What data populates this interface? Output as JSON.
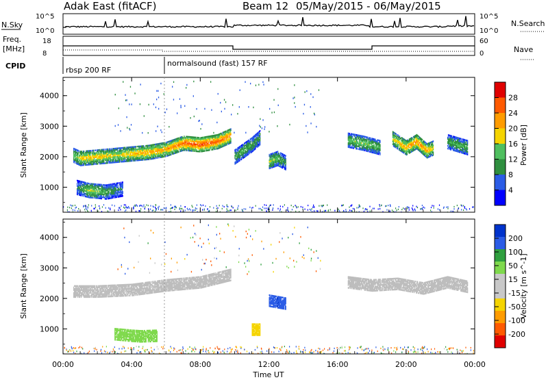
{
  "header": {
    "station": "Adak East (fitACF)",
    "beam": "Beam 12",
    "daterange": "05/May/2015 - 06/May/2015"
  },
  "nsky_panel": {
    "left_label": "N.Sky",
    "right_label": "N.Search",
    "left_ticks": [
      "10^5",
      "10^0"
    ],
    "right_ticks": [
      "10^5",
      "10^0"
    ]
  },
  "freq_panel": {
    "left_label_1": "Freq.",
    "left_label_2": "[MHz]",
    "right_label": "Nave",
    "left_ticks": [
      "18",
      "8"
    ],
    "right_ticks": [
      "60",
      "0"
    ]
  },
  "cpid_panel": {
    "label": "CPID",
    "modes": [
      "rbsp 200 RF",
      "normalsound (fast) 157 RF"
    ]
  },
  "colors": {
    "power_scale": [
      "#0000ff",
      "#2b5ce6",
      "#2f8f3f",
      "#4fbf5f",
      "#f5d400",
      "#ff9c00",
      "#ff5a00",
      "#e00000"
    ],
    "velocity_scale": [
      "#e00000",
      "#ff5a00",
      "#ff9c00",
      "#f5d400",
      "#c8c8c8",
      "#c8c8c8",
      "#7fd94d",
      "#2f9f3f",
      "#2b5ce6",
      "#0033cc"
    ],
    "ground_scatter": "#bdbdbd"
  },
  "chart_data": [
    {
      "type": "heatmap",
      "panel": "power",
      "ylabel": "Slant Range [km]",
      "ylim": [
        180,
        4600
      ],
      "yticks": [
        "1000",
        "2000",
        "3000",
        "4000"
      ],
      "colorbar": {
        "label": "Power [dB]",
        "ticks": [
          "4",
          "8",
          "12",
          "16",
          "20",
          "24",
          "28"
        ],
        "range": [
          0,
          32
        ]
      },
      "echo_bands": [
        {
          "x": [
            0.6,
            1.0,
            2.0,
            3.0,
            4.0,
            5.0,
            6.0,
            7.0,
            8.0,
            9.0,
            9.8
          ],
          "center_km": [
            2050,
            1950,
            2000,
            2050,
            2100,
            2150,
            2250,
            2450,
            2400,
            2500,
            2700
          ],
          "power_db": [
            14,
            20,
            20,
            18,
            20,
            22,
            22,
            26,
            28,
            26,
            24
          ]
        },
        {
          "x": [
            0.8,
            1.5,
            2.5,
            3.5
          ],
          "center_km": [
            1000,
            900,
            850,
            950
          ],
          "power_db": [
            8,
            18,
            12,
            8
          ]
        },
        {
          "x": [
            10.0,
            10.5,
            11.0,
            11.5
          ],
          "center_km": [
            2000,
            2200,
            2400,
            2650
          ],
          "power_db": [
            12,
            14,
            12,
            10
          ]
        },
        {
          "x": [
            12.0,
            12.5,
            13.0
          ],
          "center_km": [
            1850,
            1950,
            1800
          ],
          "power_db": [
            16,
            14,
            10
          ]
        },
        {
          "x": [
            16.6,
            17.5,
            18.5
          ],
          "center_km": [
            2550,
            2450,
            2300
          ],
          "power_db": [
            14,
            16,
            12
          ]
        },
        {
          "x": [
            19.2,
            20.0,
            20.6,
            21.2,
            21.6
          ],
          "center_km": [
            2600,
            2300,
            2500,
            2200,
            2300
          ],
          "power_db": [
            18,
            22,
            24,
            22,
            18
          ]
        },
        {
          "x": [
            22.4,
            23.0,
            23.6
          ],
          "center_km": [
            2500,
            2400,
            2300
          ],
          "power_db": [
            12,
            14,
            12
          ]
        }
      ]
    },
    {
      "type": "heatmap",
      "panel": "velocity",
      "ylabel": "Slant Range [km]",
      "ylim": [
        180,
        4600
      ],
      "yticks": [
        "1000",
        "2000",
        "3000",
        "4000"
      ],
      "colorbar": {
        "label": "Velocity [m s^-1]",
        "ticks": [
          "-200",
          "-100",
          "-50",
          "-15",
          "15",
          "50",
          "100",
          "200"
        ],
        "range": [
          -250,
          250
        ]
      },
      "echo_bands": [
        {
          "x": [
            0.6,
            2.0,
            4.0,
            6.0,
            8.0,
            9.8
          ],
          "center_km": [
            2250,
            2250,
            2300,
            2450,
            2550,
            2800
          ],
          "velocity": [
            0,
            0,
            0,
            0,
            0,
            0
          ],
          "note": "ground scatter"
        },
        {
          "x": [
            3.0,
            4.0,
            4.5,
            5.5
          ],
          "center_km": [
            850,
            800,
            780,
            800
          ],
          "velocity": [
            40,
            40,
            40,
            40
          ]
        },
        {
          "x": [
            12.0,
            12.5,
            13.0
          ],
          "center_km": [
            1950,
            1900,
            1850
          ],
          "velocity": [
            150,
            200,
            120
          ]
        },
        {
          "x": [
            11.0,
            11.5
          ],
          "center_km": [
            1000,
            1000
          ],
          "velocity": [
            -40,
            -40
          ]
        },
        {
          "x": [
            16.6,
            18.0,
            19.5,
            21.0,
            22.4,
            23.6
          ],
          "center_km": [
            2550,
            2450,
            2500,
            2350,
            2550,
            2400
          ],
          "velocity": [
            0,
            0,
            0,
            0,
            0,
            0
          ],
          "note": "ground scatter"
        }
      ]
    }
  ],
  "xaxis": {
    "title": "Time UT",
    "ticks": [
      "00:00",
      "04:00",
      "08:00",
      "12:00",
      "16:00",
      "20:00",
      "00:00"
    ],
    "xlim_hours": [
      0,
      24
    ]
  }
}
